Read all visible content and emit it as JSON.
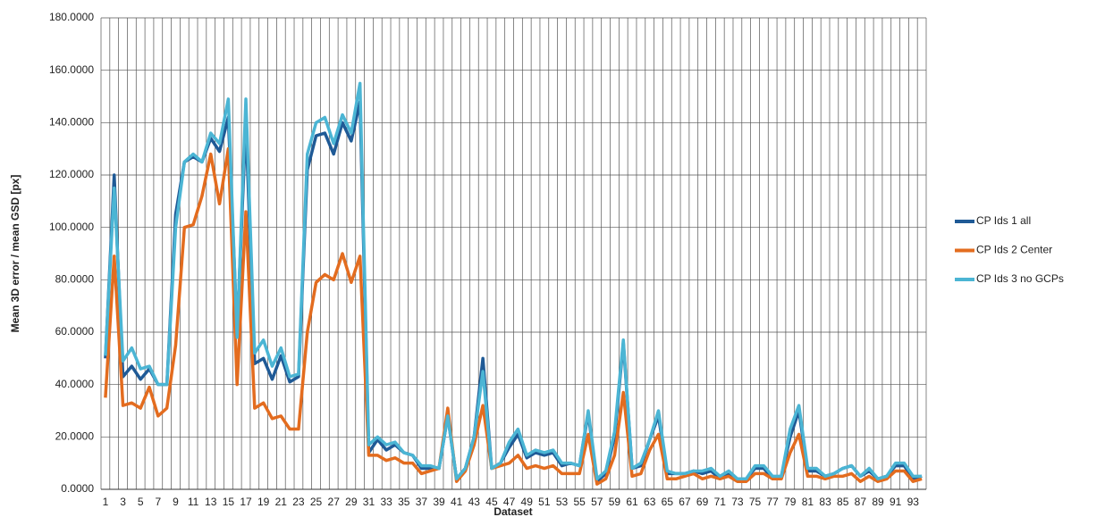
{
  "chart_data": {
    "type": "line",
    "y_label": "Mean 3D error / mean GSD [px]",
    "x_label": "Dataset",
    "categories": [
      "1",
      null,
      "3",
      null,
      "5",
      null,
      "7",
      null,
      "9",
      null,
      "11",
      null,
      "13",
      null,
      "15",
      null,
      "17",
      null,
      "19",
      null,
      "21",
      null,
      "23",
      null,
      "25",
      null,
      "27",
      null,
      "29",
      null,
      "31",
      null,
      "33",
      null,
      "35",
      null,
      "37",
      null,
      "39",
      null,
      "41",
      null,
      "43",
      null,
      "45",
      null,
      "47",
      null,
      "49",
      null,
      "51",
      null,
      "53",
      null,
      "55",
      null,
      "57",
      null,
      "59",
      null,
      "61",
      null,
      "63",
      null,
      "65",
      null,
      "67",
      null,
      "69",
      null,
      "71",
      null,
      "73",
      null,
      "75",
      null,
      "77",
      null,
      "79",
      null,
      "81",
      null,
      "83",
      null,
      "85",
      null,
      "87",
      null,
      "89",
      null,
      "91",
      null,
      "93",
      null
    ],
    "series": [
      {
        "name": "CP Ids 1 all",
        "color": "#1f5a96",
        "values": [
          50,
          120,
          43,
          47,
          42,
          46,
          40,
          40,
          105,
          125,
          127,
          125,
          134,
          129,
          142,
          60,
          140,
          48,
          50,
          42,
          51,
          41,
          43,
          122,
          135,
          136,
          128,
          140,
          133,
          148,
          14,
          19,
          15,
          17,
          14,
          13,
          8,
          8,
          8,
          28,
          4,
          8,
          20,
          50,
          8,
          10,
          16,
          21,
          12,
          14,
          13,
          14,
          9,
          10,
          9,
          29,
          3,
          6,
          20,
          56,
          8,
          9,
          19,
          28,
          6,
          6,
          6,
          7,
          6,
          7,
          4,
          6,
          4,
          4,
          8,
          8,
          4,
          5,
          20,
          30,
          7,
          7,
          5,
          6,
          8,
          9,
          5,
          7,
          4,
          5,
          9,
          9,
          4,
          5
        ]
      },
      {
        "name": "CP Ids 2 Center",
        "color": "#e36c1f",
        "values": [
          35,
          89,
          32,
          33,
          31,
          39,
          28,
          31,
          55,
          100,
          101,
          112,
          128,
          109,
          130,
          40,
          106,
          31,
          33,
          27,
          28,
          23,
          23,
          60,
          79,
          82,
          80,
          90,
          79,
          89,
          13,
          13,
          11,
          12,
          10,
          10,
          6,
          7,
          8,
          31,
          3,
          7,
          17,
          32,
          8,
          9,
          10,
          13,
          8,
          9,
          8,
          9,
          6,
          6,
          6,
          21,
          2,
          4,
          13,
          37,
          5,
          6,
          15,
          21,
          4,
          4,
          5,
          6,
          4,
          5,
          4,
          5,
          3,
          3,
          6,
          6,
          4,
          4,
          14,
          21,
          5,
          5,
          4,
          5,
          5,
          6,
          3,
          5,
          3,
          4,
          7,
          7,
          3,
          4
        ]
      },
      {
        "name": "CP Ids 3 no GCPs",
        "color": "#4bb5d4",
        "values": [
          51,
          115,
          49,
          54,
          46,
          47,
          40,
          40,
          100,
          125,
          128,
          125,
          136,
          132,
          149,
          58,
          149,
          52,
          57,
          47,
          54,
          43,
          44,
          128,
          140,
          142,
          132,
          143,
          136,
          155,
          17,
          20,
          17,
          18,
          14,
          13,
          9,
          9,
          8,
          28,
          4,
          8,
          20,
          45,
          8,
          10,
          18,
          23,
          13,
          15,
          14,
          15,
          10,
          10,
          9,
          30,
          4,
          7,
          22,
          57,
          8,
          10,
          19,
          30,
          7,
          6,
          6,
          7,
          7,
          8,
          5,
          7,
          4,
          4,
          9,
          9,
          5,
          5,
          23,
          32,
          8,
          8,
          5,
          6,
          8,
          9,
          5,
          8,
          4,
          5,
          10,
          10,
          5,
          5
        ]
      }
    ],
    "ylim": [
      0,
      180
    ],
    "yticks": [
      {
        "value": 0,
        "label": "0.0000"
      },
      {
        "value": 20,
        "label": "20.0000"
      },
      {
        "value": 40,
        "label": "40.0000"
      },
      {
        "value": 60,
        "label": "60.0000"
      },
      {
        "value": 80,
        "label": "80.0000"
      },
      {
        "value": 100,
        "label": "100.0000"
      },
      {
        "value": 120,
        "label": "120.0000"
      },
      {
        "value": 140,
        "label": "140.0000"
      },
      {
        "value": 160,
        "label": "160.0000"
      },
      {
        "value": 180,
        "label": "180.0000"
      }
    ],
    "grid": true,
    "legend": "right"
  }
}
